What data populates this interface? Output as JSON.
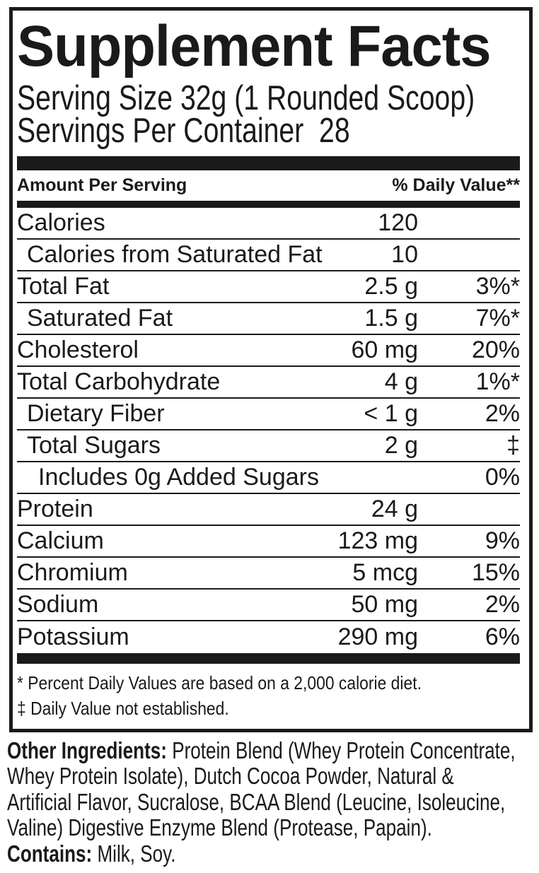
{
  "label": {
    "title": "Supplement Facts",
    "serving_size_line": "Serving Size 32g (1 Rounded Scoop)",
    "servings_per_container_line": "Servings Per Container  28",
    "header": {
      "amount_label": "Amount Per Serving",
      "daily_value_label": "% Daily Value**"
    },
    "rows": [
      {
        "name": "Calories",
        "indent": 0,
        "amount": "120",
        "dv": ""
      },
      {
        "name": "Calories from Saturated Fat",
        "indent": 1,
        "amount": "10",
        "dv": ""
      },
      {
        "name": "Total Fat",
        "indent": 0,
        "amount": "2.5 g",
        "dv": "3%*"
      },
      {
        "name": "Saturated Fat",
        "indent": 1,
        "amount": "1.5 g",
        "dv": "7%*"
      },
      {
        "name": "Cholesterol",
        "indent": 0,
        "amount": "60 mg",
        "dv": "20%"
      },
      {
        "name": "Total Carbohydrate",
        "indent": 0,
        "amount": "4 g",
        "dv": "1%*"
      },
      {
        "name": "Dietary Fiber",
        "indent": 1,
        "amount": "< 1 g",
        "dv": "2%"
      },
      {
        "name": "Total Sugars",
        "indent": 1,
        "amount": "2 g",
        "dv": "‡"
      },
      {
        "name": "Includes 0g Added Sugars",
        "indent": 2,
        "amount": "",
        "dv": "0%"
      },
      {
        "name": "Protein",
        "indent": 0,
        "amount": "24 g",
        "dv": ""
      },
      {
        "name": "Calcium",
        "indent": 0,
        "amount": "123 mg",
        "dv": "9%"
      },
      {
        "name": "Chromium",
        "indent": 0,
        "amount": "5 mcg",
        "dv": "15%"
      },
      {
        "name": "Sodium",
        "indent": 0,
        "amount": "50 mg",
        "dv": "2%"
      },
      {
        "name": "Potassium",
        "indent": 0,
        "amount": "290 mg",
        "dv": "6%"
      }
    ],
    "footnotes": [
      "* Percent Daily Values are based on a 2,000 calorie diet.",
      "‡ Daily Value not established."
    ]
  },
  "ingredients": {
    "lines": [
      {
        "bold": "Other Ingredients:",
        "text": " Protein Blend (Whey Protein Concentrate,"
      },
      {
        "bold": "",
        "text": "Whey Protein Isolate), Dutch Cocoa Powder, Natural &"
      },
      {
        "bold": "",
        "text": "Artificial Flavor, Sucralose, BCAA Blend (Leucine, Isoleucine,"
      },
      {
        "bold": "",
        "text": "Valine) Digestive Enzyme Blend (Protease, Papain)."
      },
      {
        "bold": "Contains:",
        "text": " Milk, Soy."
      }
    ]
  },
  "colors": {
    "text": "#1a1a1a",
    "bar": "#1a1a1a",
    "border": "#1a1a1a",
    "background": "#ffffff"
  }
}
